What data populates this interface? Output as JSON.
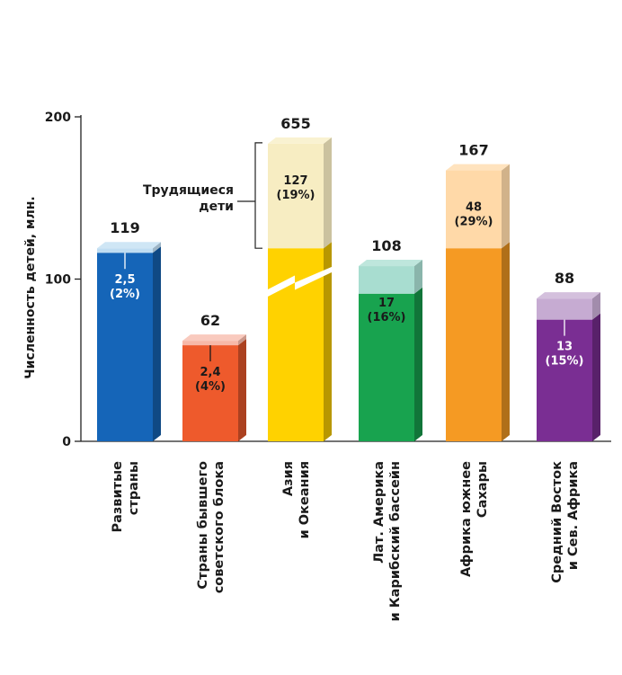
{
  "chart_data": {
    "type": "bar",
    "ylabel": "Численность детей, млн.",
    "ylim": [
      0,
      200
    ],
    "yticks": [
      "0",
      "100",
      "200"
    ],
    "axis_break": true,
    "annotation": [
      "Трудящиеся",
      "дети"
    ],
    "categories": [
      {
        "lines": [
          "Развитые",
          "страны"
        ],
        "total": 119,
        "total_label": "119",
        "working": 2.5,
        "working_label": "2,5",
        "share_label": "(2%)",
        "label_position": "inside"
      },
      {
        "lines": [
          "Страны бывшего",
          "советского блока"
        ],
        "total": 62,
        "total_label": "62",
        "working": 2.4,
        "working_label": "2,4",
        "share_label": "(4%)",
        "label_position": "inside"
      },
      {
        "lines": [
          "Азия",
          "и Океания"
        ],
        "total": 655,
        "total_label": "655",
        "working": 127,
        "working_label": "127",
        "share_label": "(19%)",
        "label_position": "top"
      },
      {
        "lines": [
          "Лат. Америка",
          "и Карибский бассейн"
        ],
        "total": 108,
        "total_label": "108",
        "working": 17,
        "working_label": "17",
        "share_label": "(16%)",
        "label_position": "top"
      },
      {
        "lines": [
          "Африка южнее",
          "Сахары"
        ],
        "total": 167,
        "total_label": "167",
        "working": 48,
        "working_label": "48",
        "share_label": "(29%)",
        "label_position": "top"
      },
      {
        "lines": [
          "Средний Восток",
          "и Сев. Африка"
        ],
        "total": 88,
        "total_label": "88",
        "working": 13,
        "working_label": "13",
        "share_label": "(15%)",
        "label_position": "inside"
      }
    ],
    "colors": {
      "bar": [
        "#1565B8",
        "#EE5A2C",
        "#FFD200",
        "#18A34F",
        "#F59A23",
        "#7A2E93"
      ],
      "working": [
        "#BFDDF2",
        "#F7B8A8",
        "#F7EDC2",
        "#A8DDD0",
        "#FFD9A8",
        "#C6ABD2"
      ],
      "label": [
        "#ffffff",
        "#1a1a1a",
        "#1a1a1a",
        "#1a1a1a",
        "#1a1a1a",
        "#ffffff"
      ]
    }
  }
}
